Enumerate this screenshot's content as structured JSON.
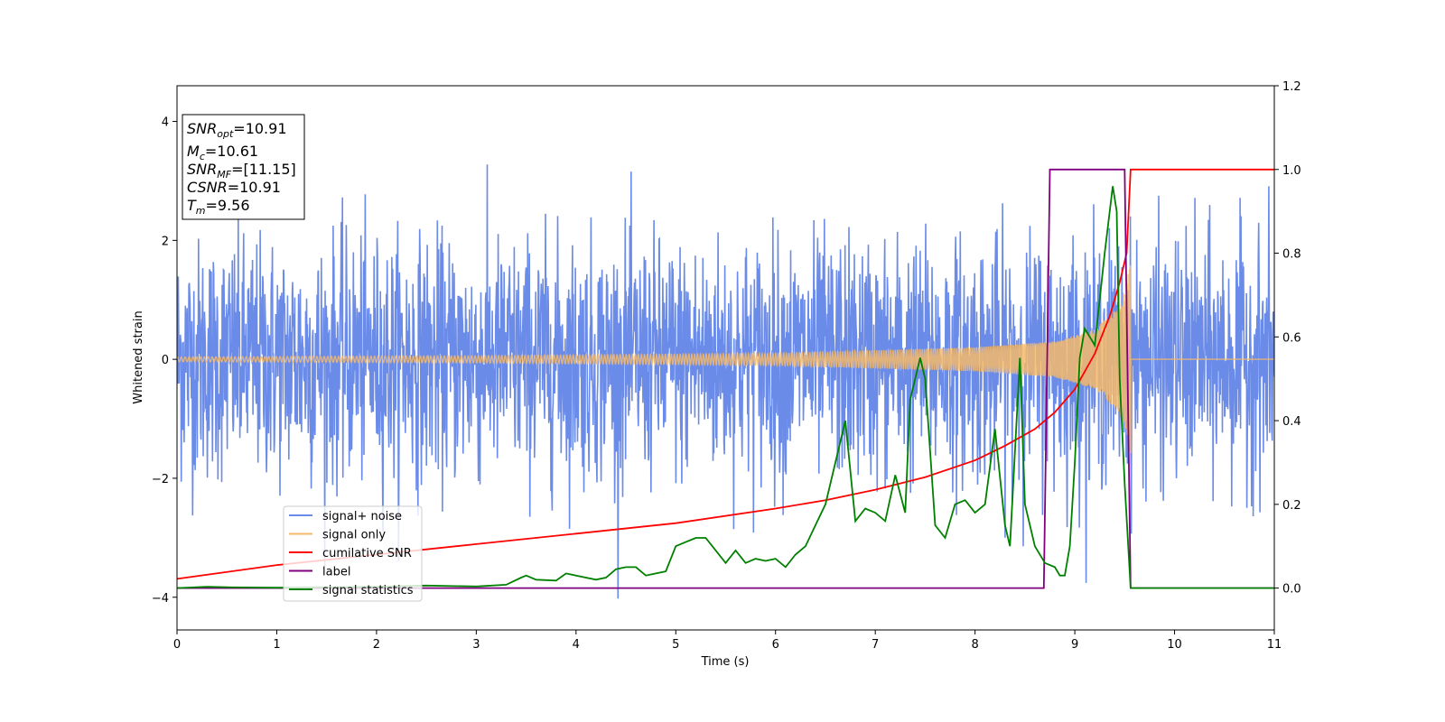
{
  "chart_data": {
    "type": "line",
    "xlabel": "Time (s)",
    "ylabel": "Whitened strain",
    "xlim": [
      0,
      11
    ],
    "ylim": [
      -4.55,
      4.6
    ],
    "y2lim": [
      -0.1,
      1.2
    ],
    "xticks": [
      "0",
      "1",
      "2",
      "3",
      "4",
      "5",
      "6",
      "7",
      "8",
      "9",
      "10",
      "11"
    ],
    "yticks": [
      "−4",
      "−2",
      "0",
      "2",
      "4"
    ],
    "y2ticks": [
      "0.0",
      "0.2",
      "0.4",
      "0.6",
      "0.8",
      "1.0",
      "1.2"
    ],
    "grid": false,
    "legend_position": "lower-left",
    "info_box": {
      "snr_opt": "10.91",
      "mc": "10.61",
      "snr_mf": "[11.15]",
      "csnr": "10.91",
      "tm": "9.56"
    },
    "series": [
      {
        "name": "signal+ noise",
        "color": "#6b8be8",
        "axis": "left",
        "style": "noise",
        "amplitude_sigma": 1.0,
        "x_range": [
          0,
          11
        ]
      },
      {
        "name": "signal only",
        "color": "#f5b96a",
        "axis": "left",
        "style": "chirp",
        "merger_time": 9.56,
        "amplitude_points": [
          [
            0,
            0.04
          ],
          [
            3,
            0.06
          ],
          [
            6,
            0.1
          ],
          [
            8,
            0.2
          ],
          [
            8.8,
            0.3
          ],
          [
            9.2,
            0.5
          ],
          [
            9.45,
            0.9
          ],
          [
            9.56,
            1.6
          ],
          [
            9.57,
            0
          ]
        ]
      },
      {
        "name": "cumilative SNR",
        "color": "#ff0000",
        "axis": "right",
        "x": [
          0,
          1,
          2,
          3,
          4,
          5,
          6,
          6.5,
          7,
          7.5,
          8,
          8.3,
          8.6,
          8.8,
          9.0,
          9.2,
          9.35,
          9.45,
          9.52,
          9.56,
          11
        ],
        "values": [
          0.022,
          0.055,
          0.08,
          0.105,
          0.13,
          0.155,
          0.19,
          0.21,
          0.235,
          0.265,
          0.305,
          0.34,
          0.38,
          0.42,
          0.475,
          0.56,
          0.65,
          0.73,
          0.8,
          1.0,
          1.0
        ]
      },
      {
        "name": "label",
        "color": "#800080",
        "axis": "right",
        "x": [
          0,
          8.69,
          8.75,
          9.5,
          9.56,
          11
        ],
        "values": [
          0,
          0,
          1,
          1,
          0,
          0
        ]
      },
      {
        "name": "signal statistics",
        "color": "#008000",
        "axis": "right",
        "x": [
          0,
          0.3,
          0.5,
          1,
          1.5,
          2,
          2.5,
          3,
          3.3,
          3.45,
          3.5,
          3.6,
          3.8,
          3.9,
          4.0,
          4.2,
          4.3,
          4.4,
          4.5,
          4.6,
          4.7,
          4.8,
          4.9,
          5.0,
          5.1,
          5.2,
          5.3,
          5.4,
          5.5,
          5.6,
          5.7,
          5.8,
          5.9,
          6.0,
          6.1,
          6.2,
          6.3,
          6.4,
          6.5,
          6.6,
          6.7,
          6.8,
          6.9,
          7.0,
          7.1,
          7.2,
          7.3,
          7.35,
          7.45,
          7.5,
          7.6,
          7.7,
          7.8,
          7.9,
          8.0,
          8.1,
          8.2,
          8.3,
          8.35,
          8.45,
          8.5,
          8.6,
          8.7,
          8.8,
          8.85,
          8.9,
          8.95,
          9.0,
          9.05,
          9.1,
          9.15,
          9.2,
          9.3,
          9.38,
          9.42,
          9.45,
          9.5,
          9.56,
          11
        ],
        "values": [
          0.0,
          0.003,
          0.002,
          0.001,
          0.002,
          0.003,
          0.006,
          0.004,
          0.008,
          0.025,
          0.03,
          0.02,
          0.018,
          0.035,
          0.03,
          0.02,
          0.025,
          0.045,
          0.05,
          0.05,
          0.03,
          0.035,
          0.04,
          0.1,
          0.11,
          0.12,
          0.12,
          0.09,
          0.06,
          0.09,
          0.06,
          0.07,
          0.065,
          0.07,
          0.05,
          0.08,
          0.1,
          0.15,
          0.2,
          0.3,
          0.4,
          0.16,
          0.19,
          0.18,
          0.16,
          0.27,
          0.18,
          0.45,
          0.55,
          0.5,
          0.15,
          0.12,
          0.2,
          0.21,
          0.18,
          0.2,
          0.38,
          0.15,
          0.1,
          0.55,
          0.2,
          0.1,
          0.06,
          0.05,
          0.03,
          0.03,
          0.1,
          0.3,
          0.55,
          0.62,
          0.6,
          0.58,
          0.8,
          0.96,
          0.9,
          0.5,
          0.25,
          0.0,
          0.0
        ]
      }
    ]
  }
}
